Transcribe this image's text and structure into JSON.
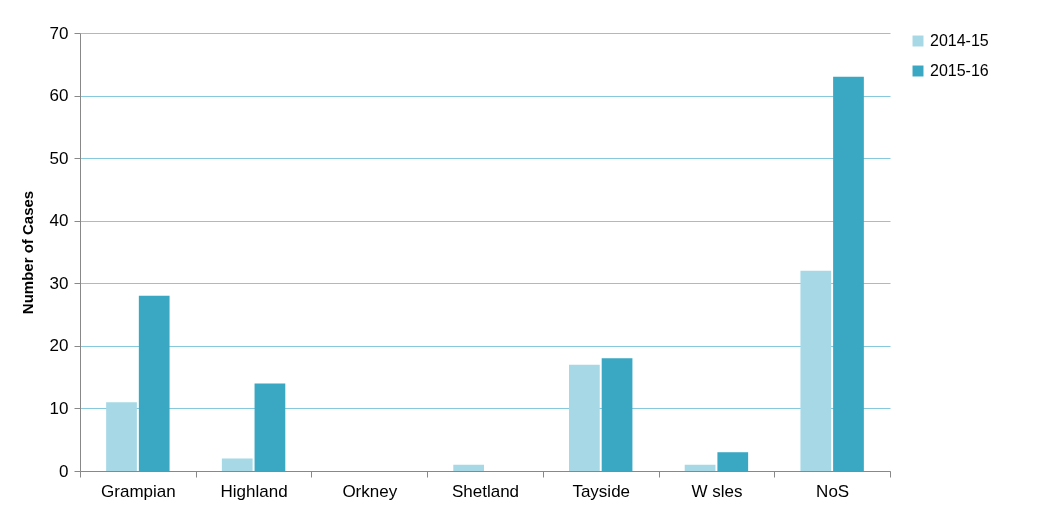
{
  "chart_data": {
    "type": "bar",
    "ylabel": "Number of Cases",
    "categories": [
      "Grampian",
      "Highland",
      "Orkney",
      "Shetland",
      "Tayside",
      "W sles",
      "NoS"
    ],
    "series": [
      {
        "name": "2014-15",
        "color": "#a6d8e6",
        "values": [
          11,
          2,
          0,
          1,
          17,
          1,
          32
        ]
      },
      {
        "name": "2015-16",
        "color": "#3aa7c3",
        "values": [
          28,
          14,
          0,
          0,
          18,
          3,
          63
        ]
      }
    ],
    "ylim": [
      0,
      70
    ],
    "yticks": [
      0,
      10,
      20,
      30,
      40,
      50,
      60,
      70
    ],
    "grid": "y",
    "legend": "right"
  }
}
